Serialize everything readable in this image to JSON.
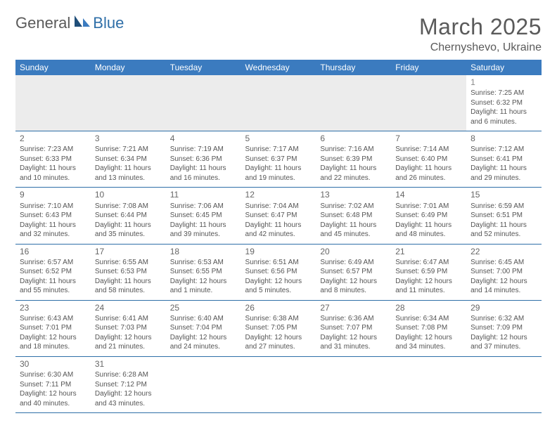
{
  "logo": {
    "text1": "General",
    "text2": "Blue"
  },
  "title": "March 2025",
  "location": "Chernyshevo, Ukraine",
  "headers": [
    "Sunday",
    "Monday",
    "Tuesday",
    "Wednesday",
    "Thursday",
    "Friday",
    "Saturday"
  ],
  "colors": {
    "header_bg": "#3b7bbf",
    "header_text": "#ffffff",
    "cell_border": "#2f6fa8",
    "firstrow_bg": "#ececec",
    "body_text": "#555555",
    "title_text": "#5a5a5a"
  },
  "weeks": [
    [
      null,
      null,
      null,
      null,
      null,
      null,
      {
        "n": "1",
        "sr": "Sunrise: 7:25 AM",
        "ss": "Sunset: 6:32 PM",
        "d1": "Daylight: 11 hours",
        "d2": "and 6 minutes."
      }
    ],
    [
      {
        "n": "2",
        "sr": "Sunrise: 7:23 AM",
        "ss": "Sunset: 6:33 PM",
        "d1": "Daylight: 11 hours",
        "d2": "and 10 minutes."
      },
      {
        "n": "3",
        "sr": "Sunrise: 7:21 AM",
        "ss": "Sunset: 6:34 PM",
        "d1": "Daylight: 11 hours",
        "d2": "and 13 minutes."
      },
      {
        "n": "4",
        "sr": "Sunrise: 7:19 AM",
        "ss": "Sunset: 6:36 PM",
        "d1": "Daylight: 11 hours",
        "d2": "and 16 minutes."
      },
      {
        "n": "5",
        "sr": "Sunrise: 7:17 AM",
        "ss": "Sunset: 6:37 PM",
        "d1": "Daylight: 11 hours",
        "d2": "and 19 minutes."
      },
      {
        "n": "6",
        "sr": "Sunrise: 7:16 AM",
        "ss": "Sunset: 6:39 PM",
        "d1": "Daylight: 11 hours",
        "d2": "and 22 minutes."
      },
      {
        "n": "7",
        "sr": "Sunrise: 7:14 AM",
        "ss": "Sunset: 6:40 PM",
        "d1": "Daylight: 11 hours",
        "d2": "and 26 minutes."
      },
      {
        "n": "8",
        "sr": "Sunrise: 7:12 AM",
        "ss": "Sunset: 6:41 PM",
        "d1": "Daylight: 11 hours",
        "d2": "and 29 minutes."
      }
    ],
    [
      {
        "n": "9",
        "sr": "Sunrise: 7:10 AM",
        "ss": "Sunset: 6:43 PM",
        "d1": "Daylight: 11 hours",
        "d2": "and 32 minutes."
      },
      {
        "n": "10",
        "sr": "Sunrise: 7:08 AM",
        "ss": "Sunset: 6:44 PM",
        "d1": "Daylight: 11 hours",
        "d2": "and 35 minutes."
      },
      {
        "n": "11",
        "sr": "Sunrise: 7:06 AM",
        "ss": "Sunset: 6:45 PM",
        "d1": "Daylight: 11 hours",
        "d2": "and 39 minutes."
      },
      {
        "n": "12",
        "sr": "Sunrise: 7:04 AM",
        "ss": "Sunset: 6:47 PM",
        "d1": "Daylight: 11 hours",
        "d2": "and 42 minutes."
      },
      {
        "n": "13",
        "sr": "Sunrise: 7:02 AM",
        "ss": "Sunset: 6:48 PM",
        "d1": "Daylight: 11 hours",
        "d2": "and 45 minutes."
      },
      {
        "n": "14",
        "sr": "Sunrise: 7:01 AM",
        "ss": "Sunset: 6:49 PM",
        "d1": "Daylight: 11 hours",
        "d2": "and 48 minutes."
      },
      {
        "n": "15",
        "sr": "Sunrise: 6:59 AM",
        "ss": "Sunset: 6:51 PM",
        "d1": "Daylight: 11 hours",
        "d2": "and 52 minutes."
      }
    ],
    [
      {
        "n": "16",
        "sr": "Sunrise: 6:57 AM",
        "ss": "Sunset: 6:52 PM",
        "d1": "Daylight: 11 hours",
        "d2": "and 55 minutes."
      },
      {
        "n": "17",
        "sr": "Sunrise: 6:55 AM",
        "ss": "Sunset: 6:53 PM",
        "d1": "Daylight: 11 hours",
        "d2": "and 58 minutes."
      },
      {
        "n": "18",
        "sr": "Sunrise: 6:53 AM",
        "ss": "Sunset: 6:55 PM",
        "d1": "Daylight: 12 hours",
        "d2": "and 1 minute."
      },
      {
        "n": "19",
        "sr": "Sunrise: 6:51 AM",
        "ss": "Sunset: 6:56 PM",
        "d1": "Daylight: 12 hours",
        "d2": "and 5 minutes."
      },
      {
        "n": "20",
        "sr": "Sunrise: 6:49 AM",
        "ss": "Sunset: 6:57 PM",
        "d1": "Daylight: 12 hours",
        "d2": "and 8 minutes."
      },
      {
        "n": "21",
        "sr": "Sunrise: 6:47 AM",
        "ss": "Sunset: 6:59 PM",
        "d1": "Daylight: 12 hours",
        "d2": "and 11 minutes."
      },
      {
        "n": "22",
        "sr": "Sunrise: 6:45 AM",
        "ss": "Sunset: 7:00 PM",
        "d1": "Daylight: 12 hours",
        "d2": "and 14 minutes."
      }
    ],
    [
      {
        "n": "23",
        "sr": "Sunrise: 6:43 AM",
        "ss": "Sunset: 7:01 PM",
        "d1": "Daylight: 12 hours",
        "d2": "and 18 minutes."
      },
      {
        "n": "24",
        "sr": "Sunrise: 6:41 AM",
        "ss": "Sunset: 7:03 PM",
        "d1": "Daylight: 12 hours",
        "d2": "and 21 minutes."
      },
      {
        "n": "25",
        "sr": "Sunrise: 6:40 AM",
        "ss": "Sunset: 7:04 PM",
        "d1": "Daylight: 12 hours",
        "d2": "and 24 minutes."
      },
      {
        "n": "26",
        "sr": "Sunrise: 6:38 AM",
        "ss": "Sunset: 7:05 PM",
        "d1": "Daylight: 12 hours",
        "d2": "and 27 minutes."
      },
      {
        "n": "27",
        "sr": "Sunrise: 6:36 AM",
        "ss": "Sunset: 7:07 PM",
        "d1": "Daylight: 12 hours",
        "d2": "and 31 minutes."
      },
      {
        "n": "28",
        "sr": "Sunrise: 6:34 AM",
        "ss": "Sunset: 7:08 PM",
        "d1": "Daylight: 12 hours",
        "d2": "and 34 minutes."
      },
      {
        "n": "29",
        "sr": "Sunrise: 6:32 AM",
        "ss": "Sunset: 7:09 PM",
        "d1": "Daylight: 12 hours",
        "d2": "and 37 minutes."
      }
    ],
    [
      {
        "n": "30",
        "sr": "Sunrise: 6:30 AM",
        "ss": "Sunset: 7:11 PM",
        "d1": "Daylight: 12 hours",
        "d2": "and 40 minutes."
      },
      {
        "n": "31",
        "sr": "Sunrise: 6:28 AM",
        "ss": "Sunset: 7:12 PM",
        "d1": "Daylight: 12 hours",
        "d2": "and 43 minutes."
      },
      null,
      null,
      null,
      null,
      null
    ]
  ]
}
